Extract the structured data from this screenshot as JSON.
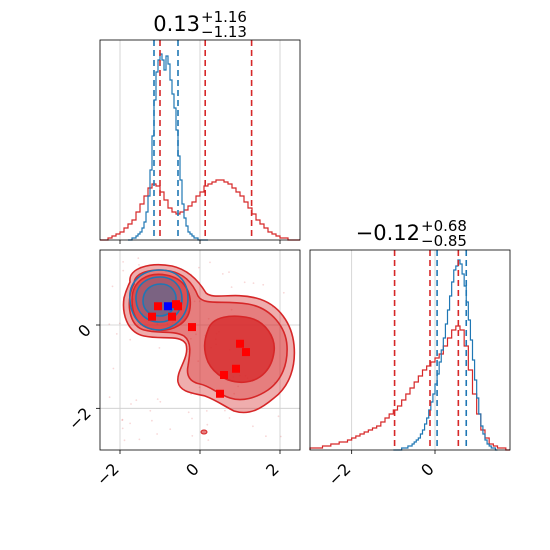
{
  "chart_data": {
    "type": "corner",
    "colors": {
      "blue": "#1f77b4",
      "red": "#d62728",
      "marker_blue": "#0000ff",
      "marker_red": "#ff0000",
      "grid": "#cccccc"
    },
    "panels": [
      {
        "id": "hist-param-1",
        "type": "histogram",
        "xlim": [
          -2.5,
          2.5
        ],
        "title": {
          "value": "0.13",
          "plus": "+1.16",
          "minus": "−1.13"
        },
        "quantile_lines": {
          "red": [
            -1.0,
            0.13,
            1.29
          ],
          "blue": [
            -1.15,
            -0.55
          ]
        },
        "series": [
          {
            "name": "",
            "color": "blue",
            "bin_start": -1.8,
            "bin_width": 0.05,
            "counts": [
              0,
              0,
              1,
              1,
              2,
              3,
              4,
              6,
              9,
              14,
              22,
              35,
              52,
              70,
              84,
              90,
              93,
              90,
              85,
              92,
              88,
              80,
              73,
              66,
              55,
              42,
              30,
              18,
              11,
              7,
              4,
              3,
              2,
              1,
              1,
              0,
              0,
              0,
              0,
              0
            ]
          },
          {
            "name": "",
            "color": "red",
            "bin_start": -2.5,
            "bin_width": 0.1,
            "counts": [
              0,
              0,
              1,
              2,
              3,
              4,
              6,
              8,
              10,
              14,
              18,
              22,
              26,
              28,
              27,
              24,
              20,
              16,
              14,
              13,
              14,
              15,
              17,
              19,
              22,
              24,
              27,
              28,
              29,
              30,
              30,
              29,
              28,
              26,
              24,
              22,
              19,
              16,
              13,
              10,
              8,
              6,
              4,
              3,
              2,
              1,
              1,
              0,
              0,
              0
            ]
          }
        ],
        "ylim": [
          0,
          100
        ]
      },
      {
        "id": "hist-param-2",
        "type": "histogram",
        "xlim": [
          -3.0,
          1.8
        ],
        "xticks": [
          -2,
          0
        ],
        "title": {
          "value": "−0.12",
          "plus": "+0.68",
          "minus": "−0.85"
        },
        "quantile_lines": {
          "red": [
            -0.97,
            -0.12,
            0.56
          ],
          "blue": [
            0.05,
            0.75
          ]
        },
        "series": [
          {
            "name": "",
            "color": "blue",
            "bin_start": -1.0,
            "bin_width": 0.05,
            "counts": [
              0,
              0,
              0,
              0,
              1,
              1,
              1,
              2,
              2,
              3,
              4,
              5,
              6,
              8,
              10,
              13,
              16,
              20,
              24,
              28,
              33,
              38,
              44,
              50,
              56,
              63,
              70,
              77,
              84,
              90,
              92,
              95,
              93,
              88,
              82,
              74,
              65,
              55,
              45,
              35,
              26,
              18,
              12,
              8,
              5,
              3,
              2,
              1,
              1,
              0
            ]
          },
          {
            "name": "",
            "color": "red",
            "bin_start": -3.0,
            "bin_width": 0.1,
            "counts": [
              1,
              1,
              1,
              2,
              2,
              3,
              3,
              4,
              4,
              5,
              6,
              7,
              8,
              9,
              10,
              11,
              12,
              14,
              16,
              18,
              20,
              22,
              25,
              28,
              31,
              34,
              37,
              40,
              42,
              44,
              46,
              48,
              52,
              56,
              60,
              62,
              60,
              52,
              40,
              28,
              18,
              10,
              6,
              3,
              2,
              1,
              1,
              0
            ]
          }
        ],
        "ylim": [
          0,
          100
        ]
      },
      {
        "id": "scatter-2d",
        "type": "contour",
        "xlim": [
          -2.5,
          2.5
        ],
        "ylim": [
          -3.0,
          1.8
        ],
        "xticks": [
          -2,
          0,
          2
        ],
        "yticks": [
          -2,
          0
        ],
        "red_markers": [
          [
            -1.2,
            0.2
          ],
          [
            -1.05,
            0.45
          ],
          [
            -0.6,
            0.5
          ],
          [
            -0.7,
            0.2
          ],
          [
            -0.2,
            -0.05
          ],
          [
            -0.55,
            0.45
          ],
          [
            1.0,
            -0.45
          ],
          [
            1.15,
            -0.65
          ],
          [
            0.9,
            -1.05
          ],
          [
            0.6,
            -1.2
          ],
          [
            0.5,
            -1.65
          ]
        ],
        "blue_markers": [
          [
            -0.8,
            0.45
          ]
        ]
      }
    ]
  }
}
